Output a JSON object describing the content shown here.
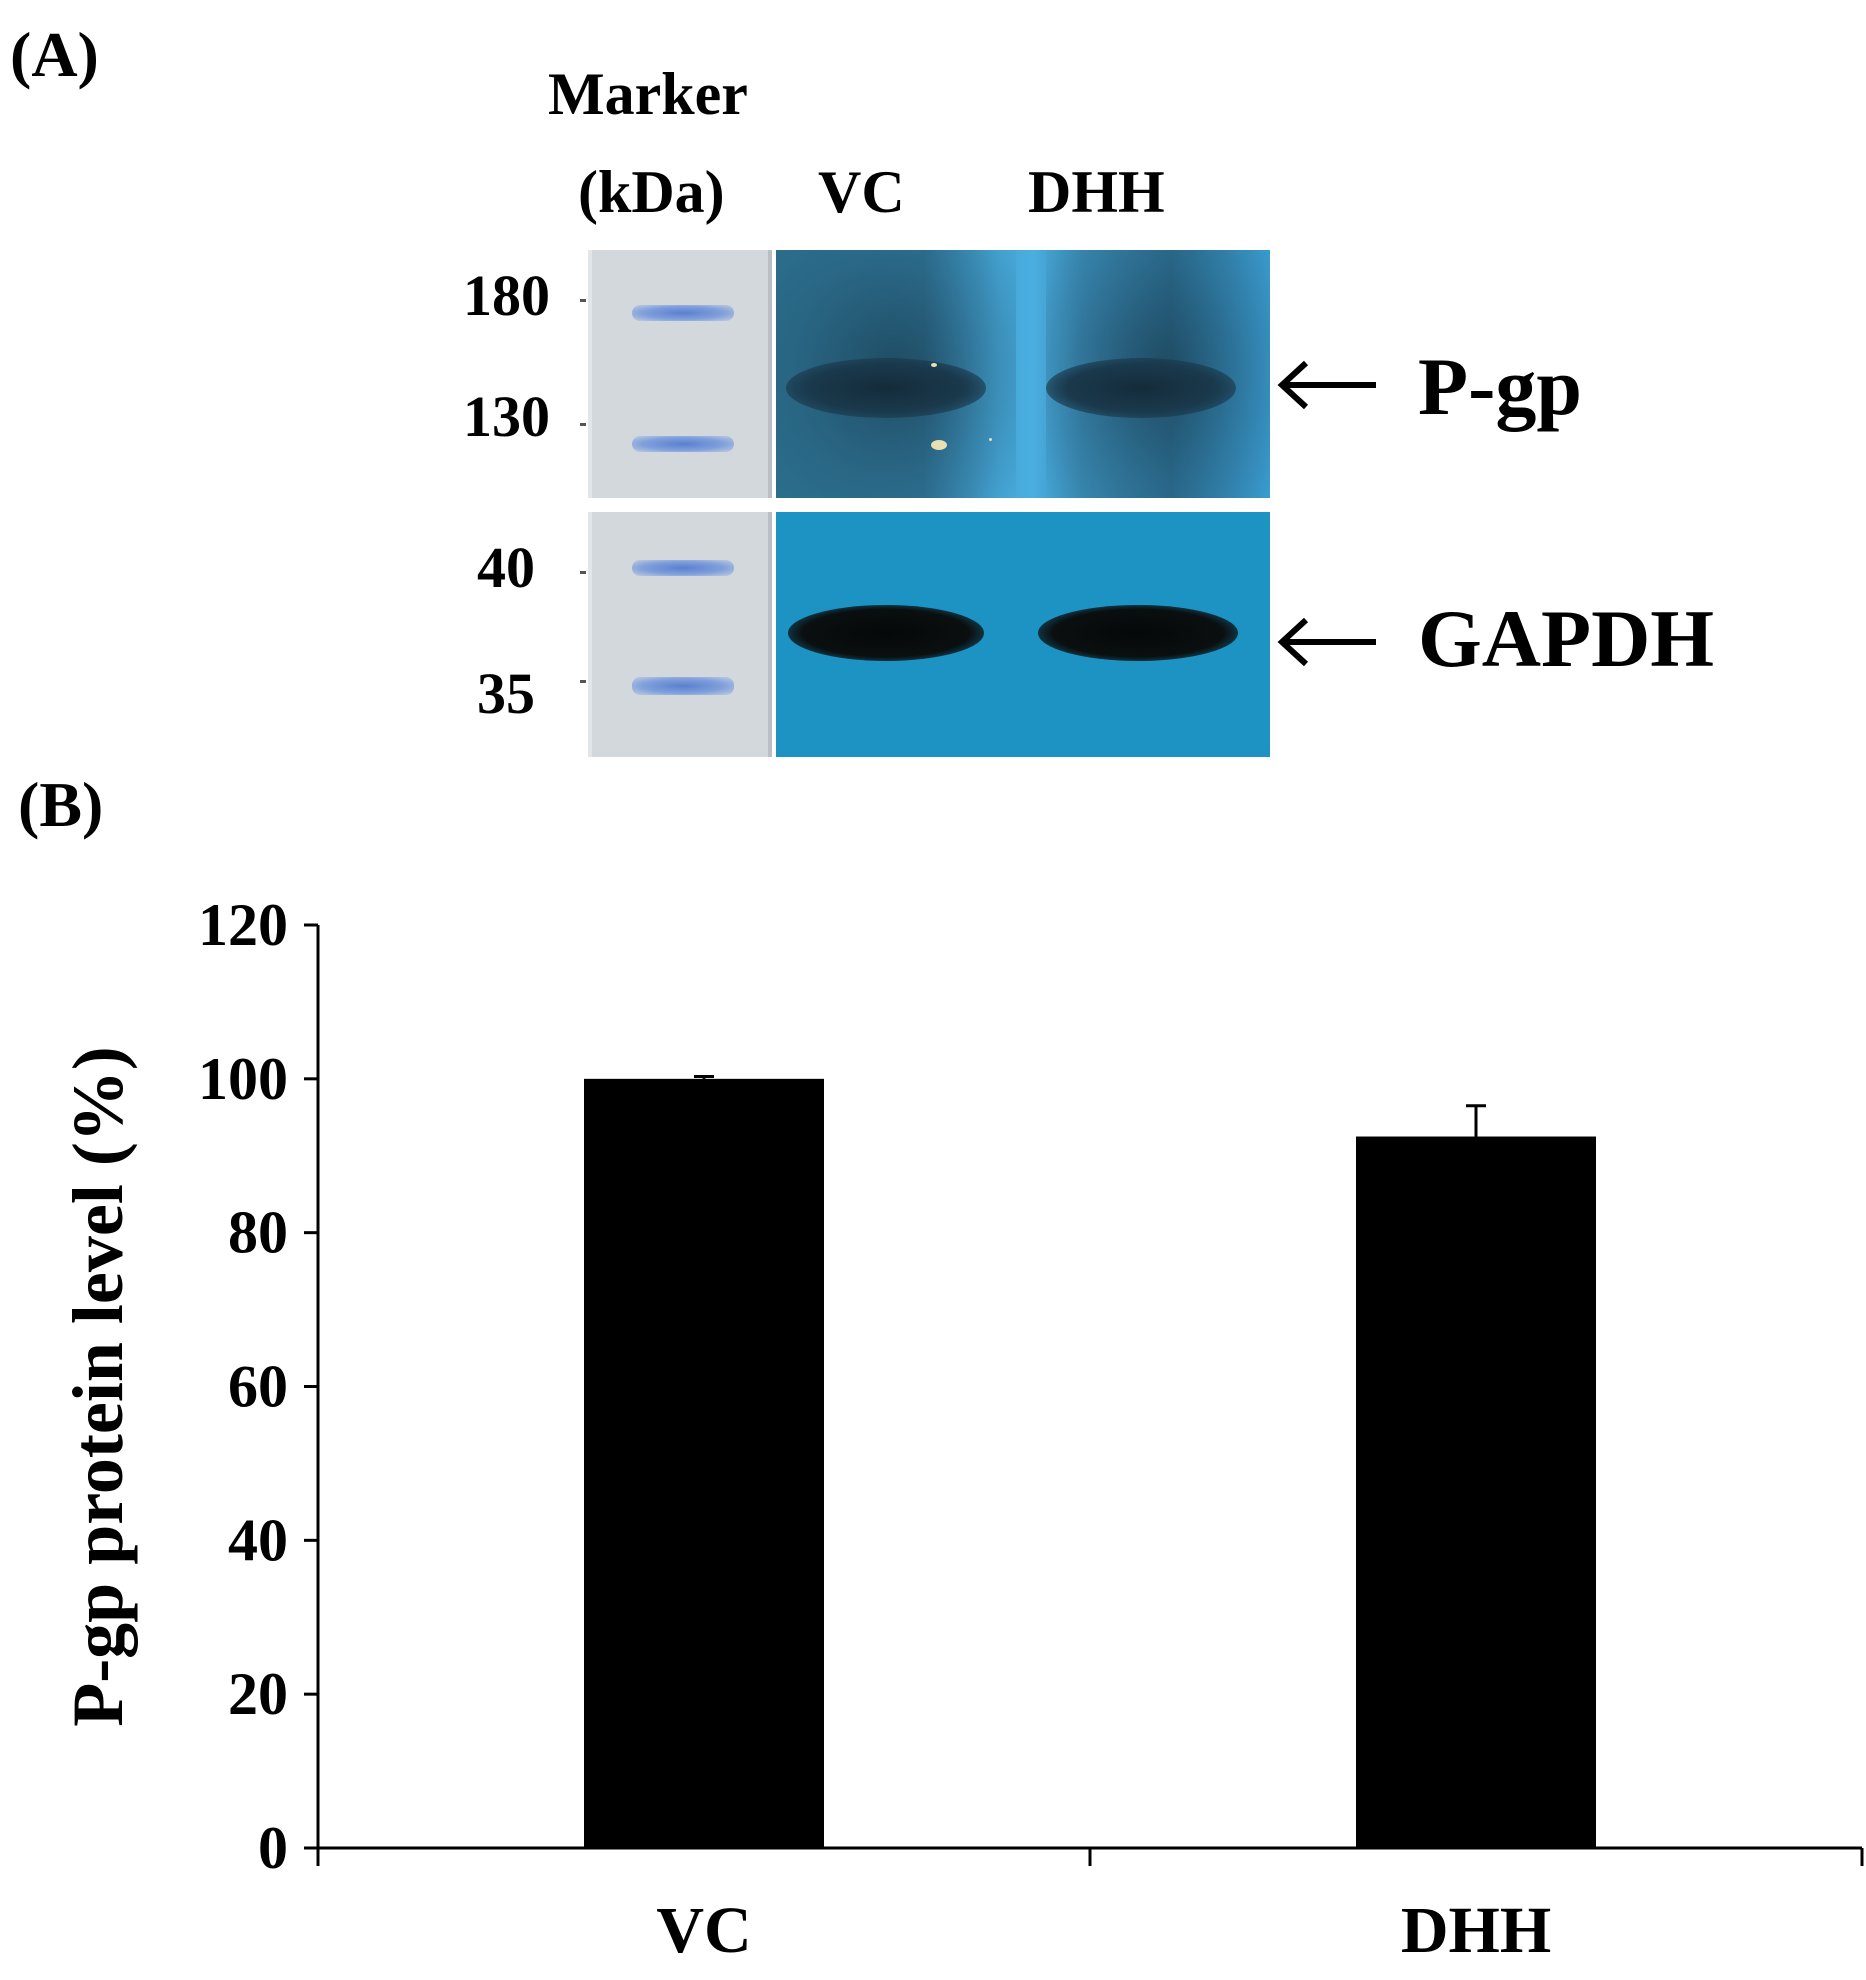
{
  "panel_a": {
    "label": "(A)",
    "marker_label_1": "Marker",
    "marker_label_2": "(kDa)",
    "lanes": [
      "VC",
      "DHH"
    ],
    "mw_markers": [
      "180",
      "130",
      "40",
      "35"
    ],
    "bands": [
      "P-gp",
      "GAPDH"
    ],
    "colors": {
      "pgp_blot": "#3fa0d2",
      "gapdh_blot": "#1d93c3",
      "marker_bands": "#6b8fd6"
    }
  },
  "panel_b": {
    "label": "(B)"
  },
  "chart_data": {
    "type": "bar",
    "title": "",
    "xlabel": "",
    "ylabel": "P-gp protein level (%)",
    "categories": [
      "VC",
      "DHH"
    ],
    "series": [
      {
        "values": [
          100,
          92.5
        ],
        "error": [
          0.3,
          4
        ]
      }
    ],
    "ylim": [
      0,
      120
    ],
    "yticks": [
      0,
      20,
      40,
      60,
      80,
      100,
      120
    ],
    "grid": false,
    "legend": false,
    "bar_color": "#000000"
  }
}
